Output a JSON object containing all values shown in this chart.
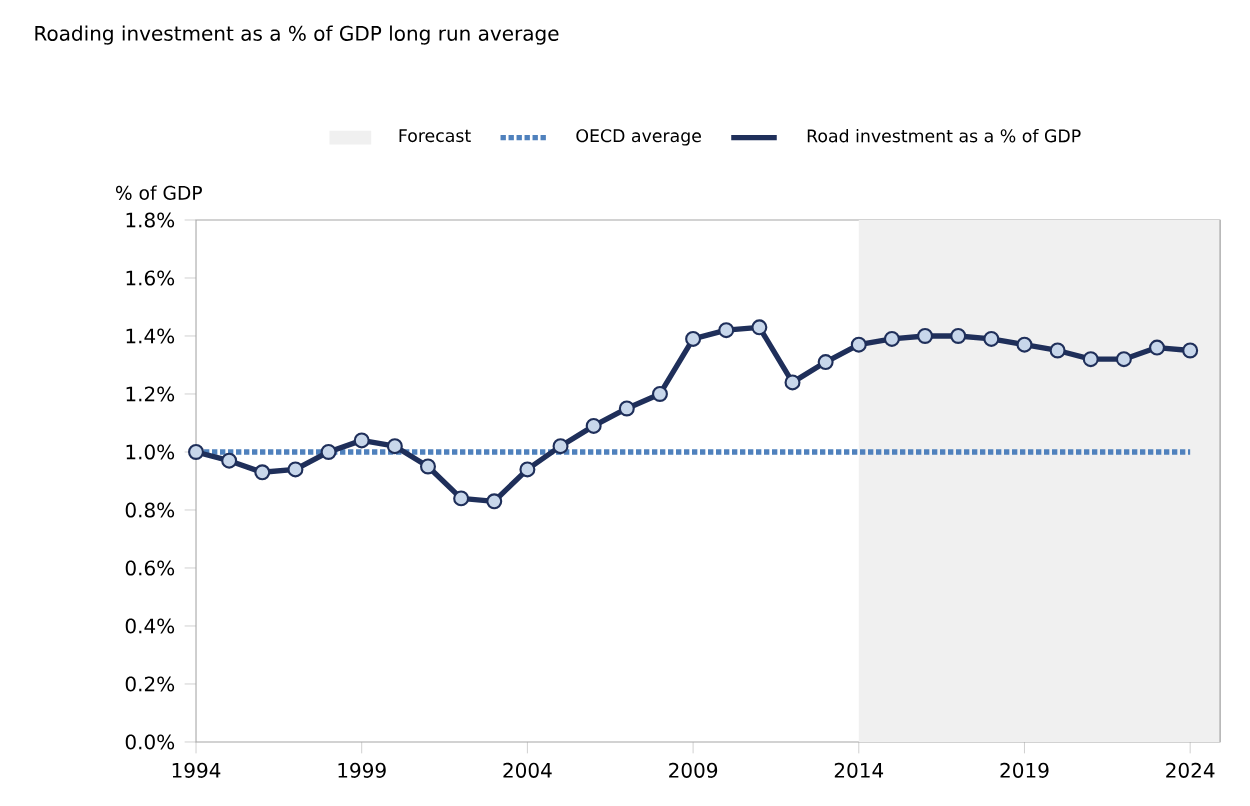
{
  "chart_data": {
    "type": "line",
    "title": "Roading investment as a % of GDP long run average",
    "ylabel": "% of GDP",
    "xlim": [
      1994,
      2024.9
    ],
    "xticks": [
      1994,
      1999,
      2004,
      2009,
      2014,
      2019,
      2024
    ],
    "ylim": [
      0,
      1.8
    ],
    "yticks": [
      {
        "value": 0,
        "label": "0.0%"
      },
      {
        "value": 0.2,
        "label": "0.2%"
      },
      {
        "value": 0.4,
        "label": "0.4%"
      },
      {
        "value": 0.6,
        "label": "0.6%"
      },
      {
        "value": 0.8,
        "label": "0.8%"
      },
      {
        "value": 1.0,
        "label": "1.0%"
      },
      {
        "value": 1.2,
        "label": "1.2%"
      },
      {
        "value": 1.4,
        "label": "1.4%"
      },
      {
        "value": 1.6,
        "label": "1.6%"
      },
      {
        "value": 1.8,
        "label": "1.8%"
      }
    ],
    "bands": [
      {
        "axis": "x",
        "from": 2014,
        "to": 2024.9,
        "label": "Forecast",
        "color": "#f0f0f0"
      }
    ],
    "legend": "top",
    "grid": false,
    "series": [
      {
        "name": "OECD average",
        "color": "#4f81bd",
        "line_style": "dotted",
        "marker": "none",
        "x": [
          1994,
          2024
        ],
        "values": [
          1.0,
          1.0
        ]
      },
      {
        "name": "Road investment as a % of GDP",
        "color": "#1f2f5a",
        "line_style": "solid",
        "marker": "circle",
        "x": [
          1994,
          1995,
          1996,
          1997,
          1998,
          1999,
          2000,
          2001,
          2002,
          2003,
          2004,
          2005,
          2006,
          2007,
          2008,
          2009,
          2010,
          2011,
          2012,
          2013,
          2014,
          2015,
          2016,
          2017,
          2018,
          2019,
          2020,
          2021,
          2022,
          2023,
          2024
        ],
        "values": [
          1.0,
          0.97,
          0.93,
          0.94,
          1.0,
          1.04,
          1.02,
          0.95,
          0.84,
          0.83,
          0.94,
          1.02,
          1.09,
          1.15,
          1.2,
          1.39,
          1.42,
          1.43,
          1.24,
          1.31,
          1.37,
          1.39,
          1.4,
          1.4,
          1.39,
          1.37,
          1.35,
          1.32,
          1.32,
          1.36,
          1.35
        ]
      }
    ]
  }
}
